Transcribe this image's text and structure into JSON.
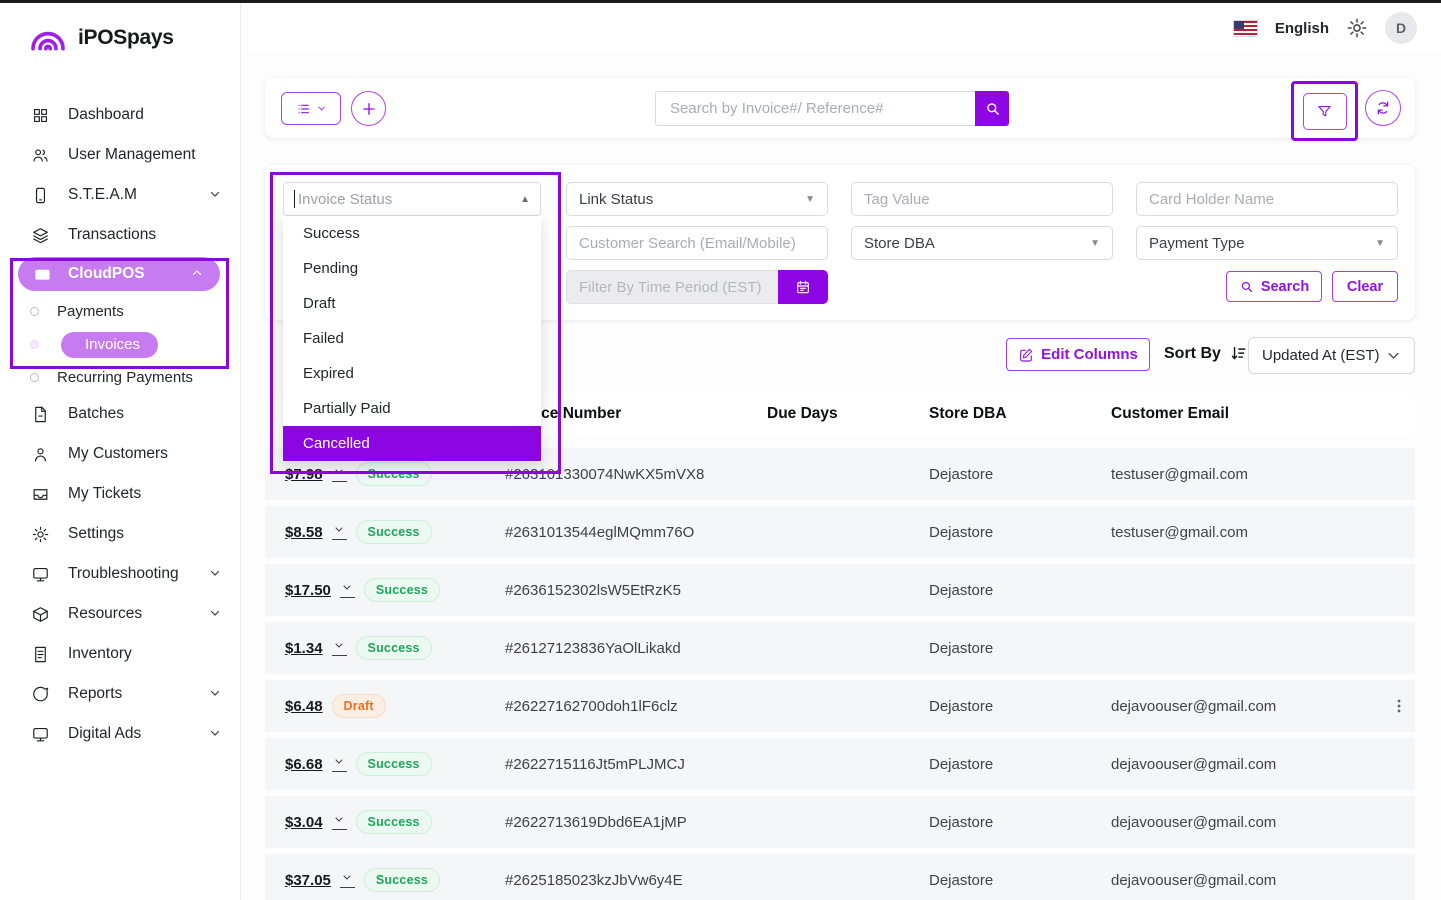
{
  "colors": {
    "accent_purple": "#8f06e5",
    "annotation_purple": "#8a08de",
    "active_pill_purple": "#c77bf0",
    "success_green": "#1fa45c",
    "draft_orange": "#f06f1f"
  },
  "brand": {
    "name": "iPOSpays"
  },
  "topbar": {
    "language": "English",
    "avatar_initial": "D"
  },
  "sidebar": {
    "items": [
      {
        "label": "Dashboard",
        "icon": "grid-icon"
      },
      {
        "label": "User Management",
        "icon": "users-icon"
      },
      {
        "label": "S.T.E.A.M",
        "icon": "device-icon",
        "chevron": "down"
      },
      {
        "label": "Transactions",
        "icon": "layers-icon"
      },
      {
        "label": "CloudPOS",
        "icon": "card-icon",
        "chevron": "up",
        "parent_active": true
      },
      {
        "label": "Payments",
        "child": true
      },
      {
        "label": "Invoices",
        "child": true,
        "active": true
      },
      {
        "label": "Recurring Payments",
        "child": true
      },
      {
        "label": "Batches",
        "icon": "file-icon"
      },
      {
        "label": "My Customers",
        "icon": "person-icon"
      },
      {
        "label": "My Tickets",
        "icon": "inbox-icon"
      },
      {
        "label": "Settings",
        "icon": "gear-icon"
      },
      {
        "label": "Troubleshooting",
        "icon": "monitor-icon",
        "chevron": "down"
      },
      {
        "label": "Resources",
        "icon": "package-icon",
        "chevron": "down"
      },
      {
        "label": "Inventory",
        "icon": "doc-icon"
      },
      {
        "label": "Reports",
        "icon": "chat-icon",
        "chevron": "down"
      },
      {
        "label": "Digital Ads",
        "icon": "monitor-icon",
        "chevron": "down"
      }
    ]
  },
  "toolbar": {
    "search_placeholder": "Search by Invoice#/ Reference#"
  },
  "filters": {
    "invoice_status": {
      "placeholder": "Invoice Status",
      "options": [
        "Success",
        "Pending",
        "Draft",
        "Failed",
        "Expired",
        "Partially Paid",
        "Cancelled"
      ],
      "highlighted": "Cancelled"
    },
    "link_status_label": "Link Status",
    "tag_value_placeholder": "Tag Value",
    "card_holder_placeholder": "Card Holder Name",
    "customer_search_placeholder": "Customer Search (Email/Mobile)",
    "store_dba_label": "Store DBA",
    "payment_type_label": "Payment Type",
    "time_period_placeholder": "Filter By Time Period (EST)",
    "search_label": "Search",
    "clear_label": "Clear"
  },
  "table_controls": {
    "edit_columns_label": "Edit Columns",
    "sort_by_label": "Sort By",
    "sort_value": "Updated At (EST)"
  },
  "table": {
    "headers": {
      "invoice_number": "Invoice Number",
      "due_days": "Due Days",
      "store_dba": "Store DBA",
      "customer_email": "Customer Email"
    },
    "rows": [
      {
        "amount": "$7.98",
        "expandable": true,
        "status": "Success",
        "invoice": "#263101330074NwKX5mVX8",
        "due_days": "",
        "store": "Dejastore",
        "email": "testuser@gmail.com",
        "menu": false
      },
      {
        "amount": "$8.58",
        "expandable": true,
        "status": "Success",
        "invoice": "#2631013544eglMQmm76O",
        "due_days": "",
        "store": "Dejastore",
        "email": "testuser@gmail.com",
        "menu": false
      },
      {
        "amount": "$17.50",
        "expandable": true,
        "status": "Success",
        "invoice": "#2636152302lsW5EtRzK5",
        "due_days": "",
        "store": "Dejastore",
        "email": "",
        "menu": false
      },
      {
        "amount": "$1.34",
        "expandable": true,
        "status": "Success",
        "invoice": "#26127123836YaOlLikakd",
        "due_days": "",
        "store": "Dejastore",
        "email": "",
        "menu": false
      },
      {
        "amount": "$6.48",
        "expandable": false,
        "status": "Draft",
        "invoice": "#26227162700doh1lF6clz",
        "due_days": "",
        "store": "Dejastore",
        "email": "dejavoouser@gmail.com",
        "menu": true
      },
      {
        "amount": "$6.68",
        "expandable": true,
        "status": "Success",
        "invoice": "#2622715116Jt5mPLJMCJ",
        "due_days": "",
        "store": "Dejastore",
        "email": "dejavoouser@gmail.com",
        "menu": false
      },
      {
        "amount": "$3.04",
        "expandable": true,
        "status": "Success",
        "invoice": "#2622713619Dbd6EA1jMP",
        "due_days": "",
        "store": "Dejastore",
        "email": "dejavoouser@gmail.com",
        "menu": false
      },
      {
        "amount": "$37.05",
        "expandable": true,
        "status": "Success",
        "invoice": "#2625185023kzJbVw6y4E",
        "due_days": "",
        "store": "Dejastore",
        "email": "dejavoouser@gmail.com",
        "menu": false
      }
    ]
  }
}
